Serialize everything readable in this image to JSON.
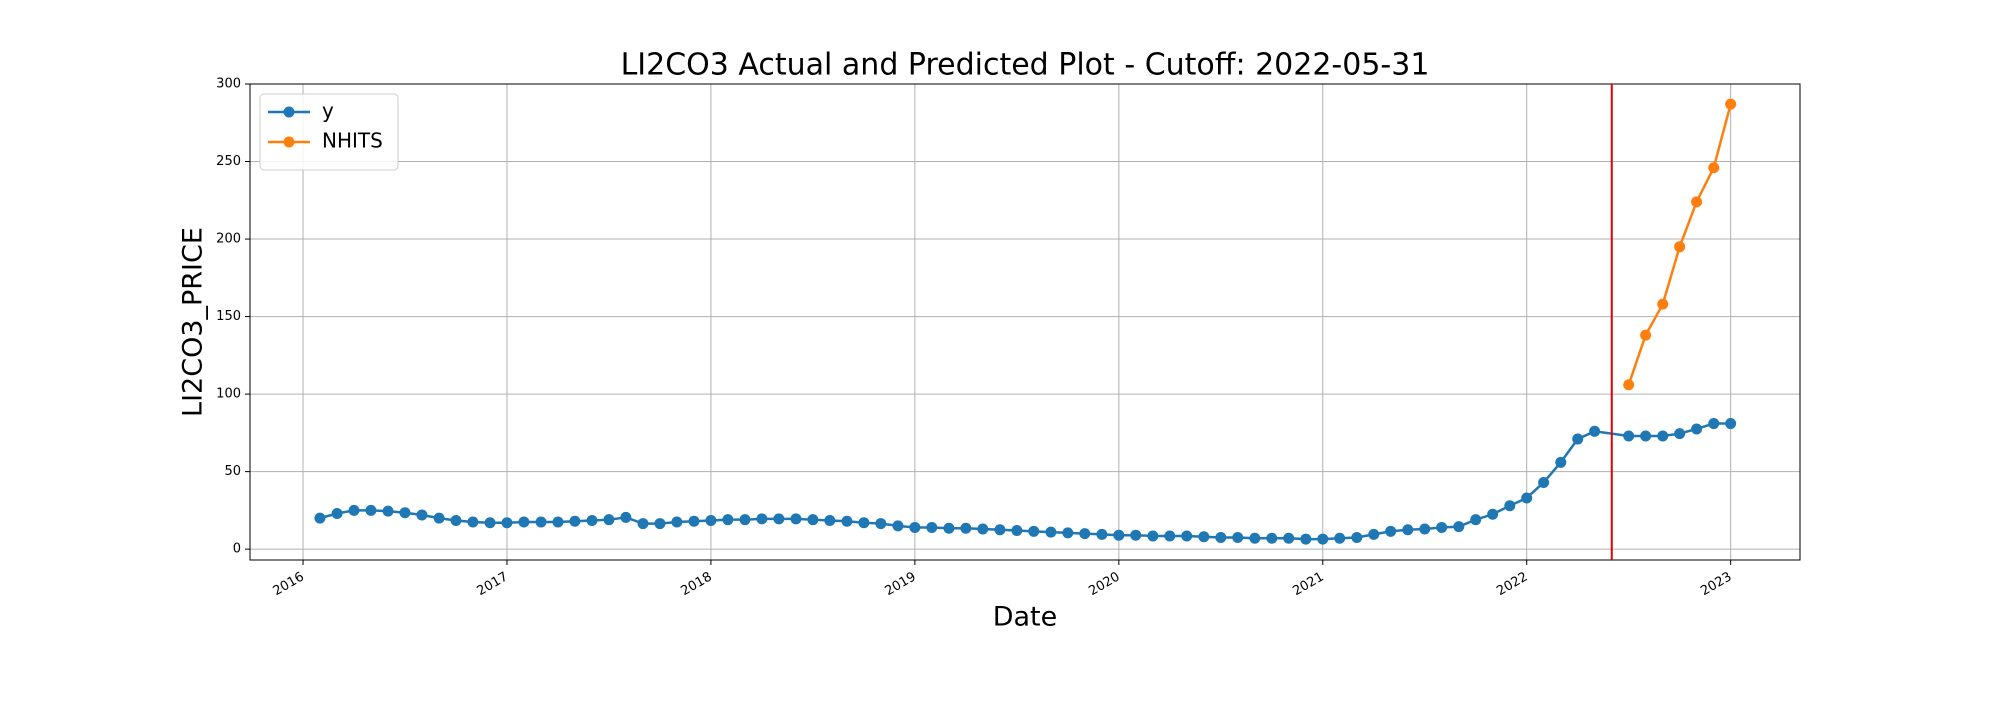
{
  "chart_data": {
    "type": "line",
    "title": "LI2CO3 Actual and Predicted Plot - Cutoff: 2022-05-31",
    "x_label": "Date",
    "y_label": "LI2CO3_PRICE",
    "xlim": [
      2015.74,
      2023.34
    ],
    "ylim": [
      -7,
      300
    ],
    "xticks": [
      2016,
      2017,
      2018,
      2019,
      2020,
      2021,
      2022,
      2023
    ],
    "yticks": [
      0,
      50,
      100,
      150,
      200,
      250,
      300
    ],
    "grid": true,
    "legend": "upper-left",
    "cutoff_x": 2022.417,
    "cutoff_color": "#e00000",
    "series": [
      {
        "name": "y",
        "color": "#1f77b4",
        "x": [
          2016.083,
          2016.167,
          2016.25,
          2016.333,
          2016.417,
          2016.5,
          2016.583,
          2016.667,
          2016.75,
          2016.833,
          2016.917,
          2017,
          2017.083,
          2017.167,
          2017.25,
          2017.333,
          2017.417,
          2017.5,
          2017.583,
          2017.667,
          2017.75,
          2017.833,
          2017.917,
          2018,
          2018.083,
          2018.167,
          2018.25,
          2018.333,
          2018.417,
          2018.5,
          2018.583,
          2018.667,
          2018.75,
          2018.833,
          2018.917,
          2019,
          2019.083,
          2019.167,
          2019.25,
          2019.333,
          2019.417,
          2019.5,
          2019.583,
          2019.667,
          2019.75,
          2019.833,
          2019.917,
          2020,
          2020.083,
          2020.167,
          2020.25,
          2020.333,
          2020.417,
          2020.5,
          2020.583,
          2020.667,
          2020.75,
          2020.833,
          2020.917,
          2021,
          2021.083,
          2021.167,
          2021.25,
          2021.333,
          2021.417,
          2021.5,
          2021.583,
          2021.667,
          2021.75,
          2021.833,
          2021.917,
          2022,
          2022.083,
          2022.167,
          2022.25,
          2022.333,
          2022.5,
          2022.583,
          2022.667,
          2022.75,
          2022.833,
          2022.917,
          2023
        ],
        "values": [
          20,
          23,
          25,
          25,
          24.5,
          23.5,
          22,
          20,
          18.5,
          17.5,
          17,
          17,
          17.5,
          17.5,
          17.5,
          18,
          18.5,
          19,
          20.5,
          16.5,
          16.5,
          17.5,
          18,
          18.5,
          19,
          19,
          19.5,
          19.5,
          19.5,
          19,
          18.5,
          18,
          17,
          16.5,
          15,
          14,
          14,
          13.5,
          13.5,
          13,
          12.5,
          12,
          11.5,
          11,
          10.5,
          10,
          9.5,
          9,
          9,
          8.5,
          8.5,
          8.5,
          8,
          7.5,
          7.5,
          7,
          7,
          7,
          6.5,
          6.5,
          7,
          7.5,
          9.5,
          11.5,
          12.5,
          13,
          14,
          14.5,
          19,
          22.5,
          28,
          33,
          43,
          56,
          71,
          76,
          73,
          73,
          73,
          74.5,
          77.5,
          81,
          81
        ]
      },
      {
        "name": "NHITS",
        "color": "#ff7f0e",
        "x": [
          2022.5,
          2022.583,
          2022.667,
          2022.75,
          2022.833,
          2022.917,
          2023
        ],
        "values": [
          106,
          138,
          158,
          195,
          224,
          246,
          287
        ]
      }
    ]
  }
}
